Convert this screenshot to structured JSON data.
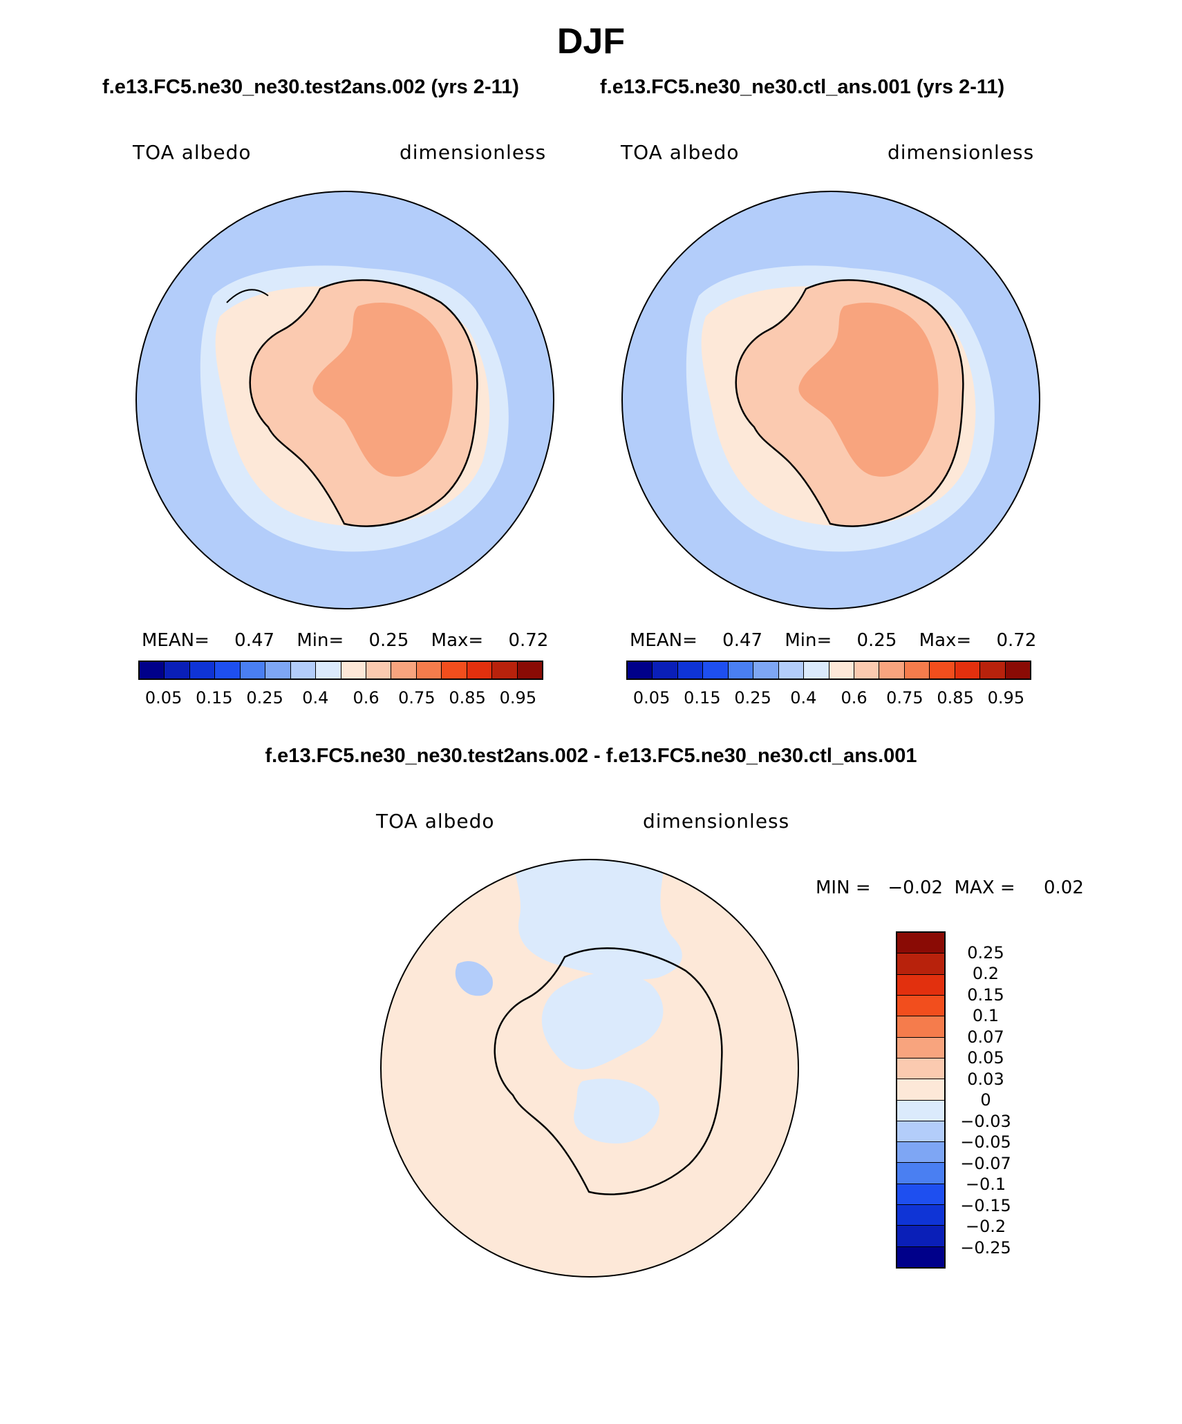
{
  "title": "DJF",
  "subtitles": {
    "left": "f.e13.FC5.ne30_ne30.test2ans.002 (yrs 2-11)",
    "right": "f.e13.FC5.ne30_ne30.ctl_ans.001 (yrs 2-11)"
  },
  "panels": [
    {
      "var_label": "TOA albedo",
      "units_label": "dimensionless",
      "stats": {
        "mean_label": "MEAN=",
        "mean": "0.47",
        "min_label": "Min=",
        "min": "0.25",
        "max_label": "Max=",
        "max": "0.72"
      }
    },
    {
      "var_label": "TOA albedo",
      "units_label": "dimensionless",
      "stats": {
        "mean_label": "MEAN=",
        "mean": "0.47",
        "min_label": "Min=",
        "min": "0.25",
        "max_label": "Max=",
        "max": "0.72"
      }
    }
  ],
  "abs_colorbar": {
    "colors": [
      "#00008a",
      "#0a1fb8",
      "#0f34d6",
      "#1e4ff0",
      "#4a7ff2",
      "#7ea6f4",
      "#b3cdfa",
      "#dbeafc",
      "#fde8d8",
      "#fbcab0",
      "#f8a47e",
      "#f57c4c",
      "#f24e1d",
      "#e2300e",
      "#b8220c",
      "#8a0b05"
    ],
    "ticks": [
      "0.05",
      "0.15",
      "0.25",
      "0.4",
      "0.6",
      "0.75",
      "0.85",
      "0.95"
    ]
  },
  "diff_title": "f.e13.FC5.ne30_ne30.test2ans.002 - f.e13.FC5.ne30_ne30.ctl_ans.001",
  "diff_panel": {
    "var_label": "TOA albedo",
    "units_label": "dimensionless",
    "minmax": "MIN =   −0.02  MAX =     0.02"
  },
  "diff_colorbar": {
    "colors": [
      "#8a0b05",
      "#b8220c",
      "#e2300e",
      "#f24e1d",
      "#f57c4c",
      "#f8a47e",
      "#fbcab0",
      "#fde8d8",
      "#dbeafc",
      "#b3cdfa",
      "#7ea6f4",
      "#4a7ff2",
      "#1e4ff0",
      "#0f34d6",
      "#0a1fb8",
      "#00008a"
    ],
    "ticks": [
      "0.25",
      "0.2",
      "0.15",
      "0.1",
      "0.07",
      "0.05",
      "0.03",
      "0",
      "−0.03",
      "−0.05",
      "−0.07",
      "−0.1",
      "−0.15",
      "−0.2",
      "−0.25"
    ]
  }
}
